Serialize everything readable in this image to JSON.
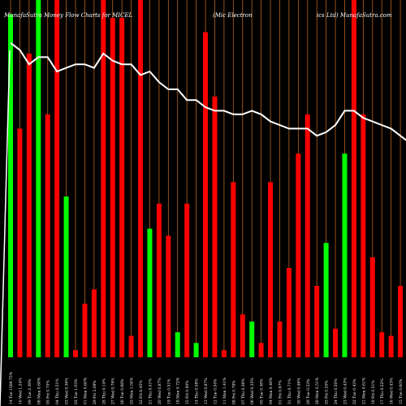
{
  "chart_data": {
    "type": "bar",
    "title_parts": [
      "MunafaSutra  Money Flow  Charts for MICEL",
      "(Mic Electron",
      "ics Ltd) MunafaSutra.com"
    ],
    "colors": {
      "background": "#000000",
      "up": "#00ff00",
      "down": "#ff0000",
      "line": "#ffffff",
      "grid": "#b8641e",
      "text": "#ffffff"
    },
    "categories": [
      "14 Tue 1588.75%",
      "10 Wed 1.24%",
      "09 Tue 2.39%",
      "08 Mon 0.68%",
      "05 Fri 0.75%",
      "04 Thu 0.51%",
      "03 Wed 0.36%",
      "02 Tue 1.03%",
      "01 Mon 0.60%",
      "29 Fri 3.08%",
      "28 Thu 0.14%",
      "27 Wed 0.79%",
      "26 Tue 0.68%",
      "25 Mon 1.04%",
      "22 Fri 6.45%",
      "21 Thu 0.51%",
      "20 Wed 0.87%",
      "19 Tue 0.51%",
      "18 Mon 0.72%",
      "15 Fri 0.80%",
      "14 Thu 0.58%",
      "13 Wed 0.87%",
      "12 Tue 0.54%",
      "11 Mon 1.41%",
      "08 Fri 0.78%",
      "07 Thu 0.36%",
      "06 Wed 0.35%",
      "05 Tue 0.36%",
      "04 Mon 0.46%",
      "01 Fri 0.67%",
      "31 Thu 0.71%",
      "30 Wed 0.46%",
      "29 Tue 0.53%",
      "28 Mon 0.51%",
      "25 Fri 0.55%",
      "24 Thu 0.50%",
      "23 Wed 0.43%",
      "22 Tue 0.43%",
      "21 Mon 0.61%",
      "18 Fri 0.51%",
      "17 Thu 0.52%",
      "16 Wed 0.43%",
      "15 Tue 0.60%",
      "14 Mon 1.08%"
    ],
    "bar_colors": [
      "green",
      "red",
      "red",
      "green",
      "red",
      "red",
      "green",
      "red",
      "red",
      "red",
      "red",
      "red",
      "red",
      "red",
      "red",
      "green",
      "red",
      "red",
      "green",
      "red",
      "green",
      "red",
      "red",
      "red",
      "red",
      "red",
      "green",
      "red",
      "red",
      "red",
      "red",
      "red",
      "red",
      "red",
      "green",
      "red",
      "green",
      "red",
      "red",
      "red",
      "red",
      "red",
      "red",
      "red"
    ],
    "values": [
      96,
      64,
      85,
      100,
      68,
      100,
      45,
      2,
      15,
      19,
      100,
      95,
      95,
      6,
      100,
      36,
      43,
      34,
      7,
      43,
      4,
      91,
      73,
      2,
      49,
      12,
      10,
      4,
      49,
      10,
      25,
      57,
      68,
      20,
      32,
      8,
      57,
      100,
      68,
      28,
      7,
      6,
      20,
      5
    ],
    "line_values": [
      88,
      86,
      82,
      84,
      84,
      80,
      81,
      82,
      82,
      81,
      85,
      83,
      82,
      82,
      79,
      80,
      77,
      75,
      75,
      72,
      72,
      70,
      69,
      69,
      68,
      68,
      69,
      68,
      66,
      65,
      64,
      64,
      64,
      62,
      63,
      65,
      69,
      69,
      67,
      66,
      65,
      64,
      62,
      60
    ],
    "ylim": [
      0,
      100
    ]
  }
}
